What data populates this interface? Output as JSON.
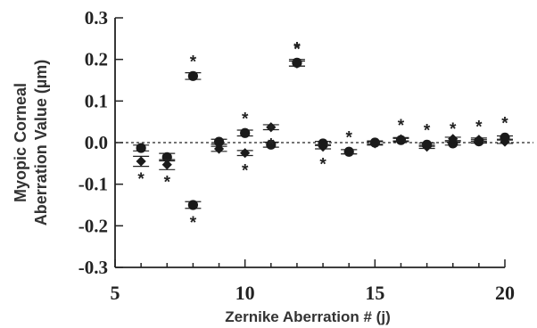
{
  "chart_data": {
    "type": "scatter",
    "title": "",
    "xlabel": "Zernike Aberration # (j)",
    "ylabel_line1": "Myopic Corneal",
    "ylabel_line2": "Aberration Value (µm)",
    "xlim": [
      5,
      20
    ],
    "ylim": [
      -0.3,
      0.3
    ],
    "xticks": [
      5,
      10,
      15,
      20
    ],
    "xtick_labels": [
      "5",
      "10",
      "15",
      "20"
    ],
    "yticks": [
      0.3,
      0.2,
      0.1,
      0.0,
      -0.1,
      -0.2,
      -0.3
    ],
    "ytick_labels": [
      "0.3",
      "0.2",
      "0.1",
      "0.0",
      "-0.1",
      "-0.2",
      "-0.3"
    ],
    "reference_line": {
      "y": 0,
      "style": "dotted"
    },
    "marker_shapes": {
      "circle": "filled-circle",
      "diamond": "filled-diamond"
    },
    "significance_marker": "*",
    "series": [
      {
        "marker": "circle",
        "points": [
          {
            "x": 6,
            "y": -0.013,
            "err": 0.007,
            "star": false
          },
          {
            "x": 7,
            "y": -0.035,
            "err": 0.009,
            "star": false
          },
          {
            "x": 8,
            "y": 0.16,
            "err": 0.008,
            "star": true
          },
          {
            "x": 8,
            "y": -0.15,
            "err": 0.008,
            "star": true
          },
          {
            "x": 9,
            "y": 0.002,
            "err": 0.006,
            "star": false
          },
          {
            "x": 10,
            "y": 0.023,
            "err": 0.007,
            "star": true
          },
          {
            "x": 11,
            "y": -0.005,
            "err": 0.006,
            "star": true
          },
          {
            "x": 12,
            "y": 0.192,
            "err": 0.008,
            "star": true
          },
          {
            "x": 13,
            "y": -0.002,
            "err": 0.005,
            "star": false
          },
          {
            "x": 14,
            "y": -0.022,
            "err": 0.005,
            "star": true
          },
          {
            "x": 15,
            "y": 0.0,
            "err": 0.004,
            "star": false
          },
          {
            "x": 16,
            "y": 0.006,
            "err": 0.004,
            "star": true
          },
          {
            "x": 17,
            "y": -0.005,
            "err": 0.004,
            "star": true
          },
          {
            "x": 18,
            "y": -0.002,
            "err": 0.004,
            "star": true
          },
          {
            "x": 19,
            "y": 0.003,
            "err": 0.004,
            "star": true
          },
          {
            "x": 20,
            "y": 0.012,
            "err": 0.004,
            "star": true
          }
        ]
      },
      {
        "marker": "diamond",
        "points": [
          {
            "x": 6,
            "y": -0.045,
            "err": 0.012,
            "star": true
          },
          {
            "x": 7,
            "y": -0.053,
            "err": 0.012,
            "star": true
          },
          {
            "x": 9,
            "y": -0.015,
            "err": 0.006,
            "star": false
          },
          {
            "x": 10,
            "y": -0.025,
            "err": 0.006,
            "star": true
          },
          {
            "x": 11,
            "y": 0.037,
            "err": 0.006,
            "star": true
          },
          {
            "x": 12,
            "y": 0.19,
            "err": 0.006,
            "star": true
          },
          {
            "x": 13,
            "y": -0.01,
            "err": 0.005,
            "star": true
          },
          {
            "x": 14,
            "y": -0.022,
            "err": 0.005,
            "star": false
          },
          {
            "x": 15,
            "y": -0.002,
            "err": 0.004,
            "star": false
          },
          {
            "x": 16,
            "y": 0.008,
            "err": 0.004,
            "star": false
          },
          {
            "x": 17,
            "y": -0.01,
            "err": 0.004,
            "star": false
          },
          {
            "x": 18,
            "y": 0.009,
            "err": 0.004,
            "star": false
          },
          {
            "x": 19,
            "y": 0.007,
            "err": 0.004,
            "star": false
          },
          {
            "x": 20,
            "y": 0.002,
            "err": 0.004,
            "star": false
          }
        ]
      }
    ]
  }
}
